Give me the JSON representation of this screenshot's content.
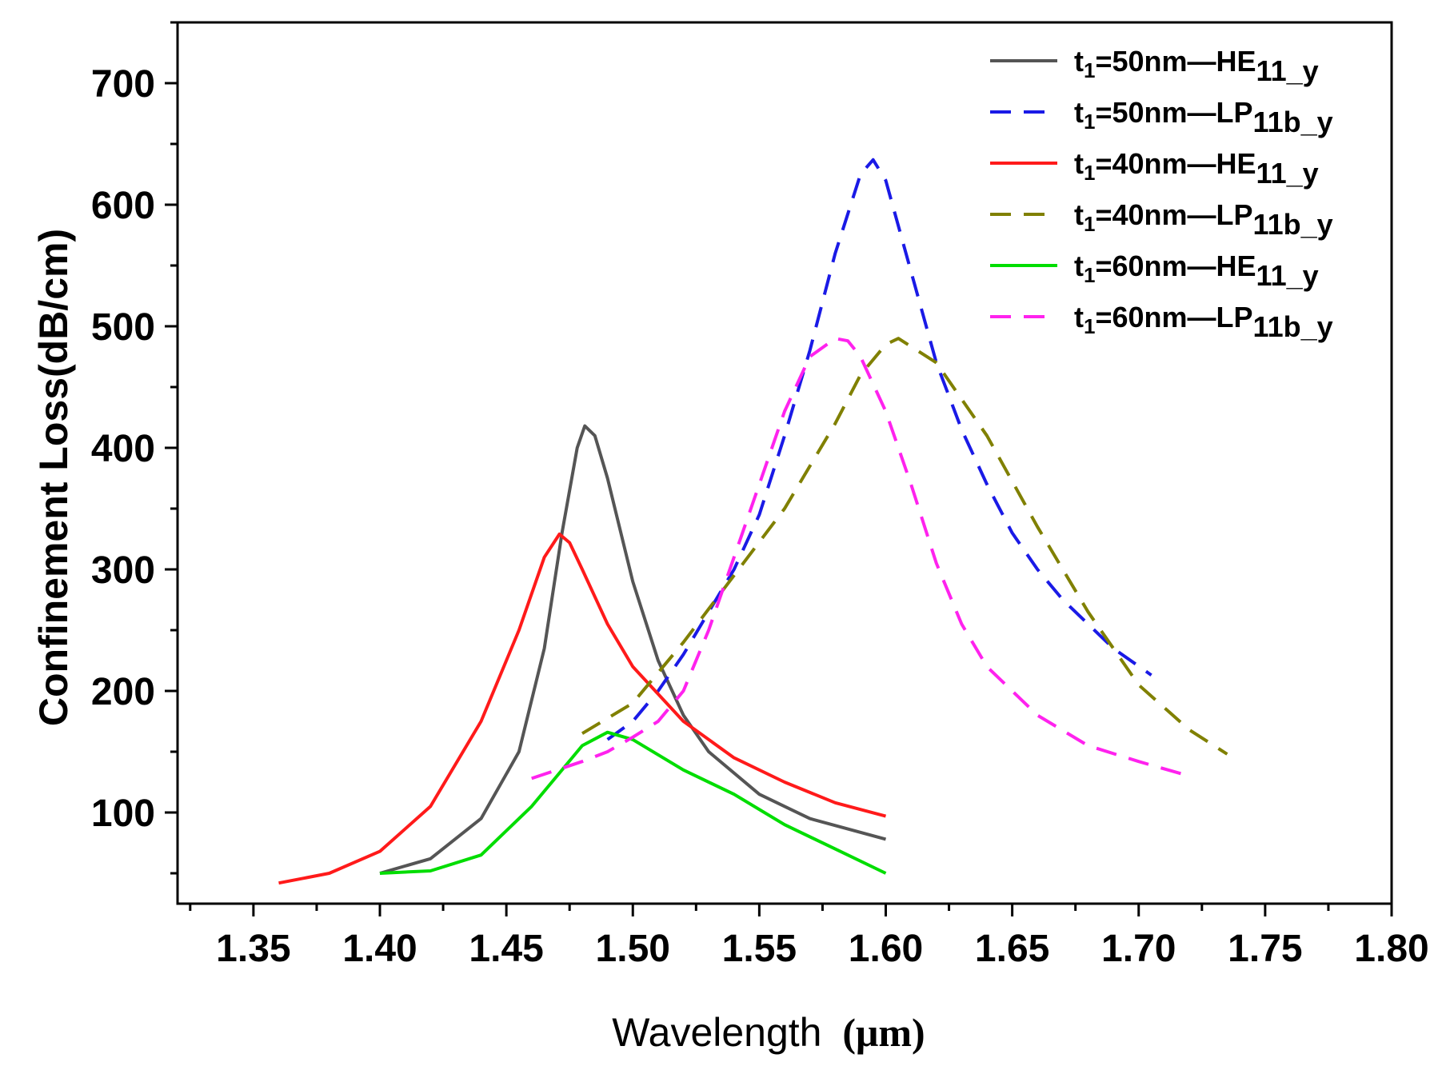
{
  "chart_data": {
    "type": "line",
    "title": "",
    "xlabel": "Wavelength (μm)",
    "xlabel_main": "Wavelength",
    "xlabel_unit": "(μm)",
    "ylabel": "Confinement Loss(dB/cm)",
    "xlim": [
      1.32,
      1.8
    ],
    "ylim": [
      25,
      750
    ],
    "x_ticks": [
      1.35,
      1.4,
      1.45,
      1.5,
      1.55,
      1.6,
      1.65,
      1.7,
      1.75,
      1.8
    ],
    "x_tick_labels": [
      "1.35",
      "1.40",
      "1.45",
      "1.50",
      "1.55",
      "1.60",
      "1.65",
      "1.70",
      "1.75",
      "1.80"
    ],
    "y_ticks": [
      100,
      200,
      300,
      400,
      500,
      600,
      700
    ],
    "y_tick_labels": [
      "100",
      "200",
      "300",
      "400",
      "500",
      "600",
      "700"
    ],
    "grid": false,
    "legend_position": "top-right",
    "series": [
      {
        "name": "t1=50nm—HE11_y",
        "legend": {
          "pre": "t",
          "sub": "1",
          "mid": "=50nm—HE",
          "sub2": "11_y"
        },
        "color": "#555555",
        "dash": "solid",
        "x": [
          1.4,
          1.42,
          1.44,
          1.455,
          1.465,
          1.472,
          1.478,
          1.481,
          1.485,
          1.49,
          1.5,
          1.51,
          1.52,
          1.53,
          1.55,
          1.57,
          1.6
        ],
        "y": [
          50,
          62,
          95,
          150,
          235,
          330,
          400,
          418,
          410,
          375,
          290,
          225,
          180,
          150,
          115,
          95,
          78
        ]
      },
      {
        "name": "t1=50nm—LP11b_y",
        "legend": {
          "pre": "t",
          "sub": "1",
          "mid": "=50nm—LP",
          "sub2": "11b_y"
        },
        "color": "#1a1ae6",
        "dash": "dashed",
        "x": [
          1.49,
          1.5,
          1.51,
          1.52,
          1.53,
          1.54,
          1.55,
          1.56,
          1.57,
          1.58,
          1.59,
          1.595,
          1.6,
          1.61,
          1.62,
          1.63,
          1.64,
          1.65,
          1.66,
          1.67,
          1.68,
          1.69,
          1.705
        ],
        "y": [
          160,
          175,
          200,
          230,
          265,
          300,
          345,
          410,
          480,
          560,
          625,
          637,
          620,
          545,
          470,
          415,
          370,
          330,
          300,
          275,
          255,
          235,
          213
        ]
      },
      {
        "name": "t1=40nm—HE11_y",
        "legend": {
          "pre": "t",
          "sub": "1",
          "mid": "=40nm—HE",
          "sub2": "11_y"
        },
        "color": "#ff1a1a",
        "dash": "solid",
        "x": [
          1.36,
          1.38,
          1.4,
          1.42,
          1.44,
          1.455,
          1.465,
          1.471,
          1.475,
          1.48,
          1.49,
          1.5,
          1.52,
          1.54,
          1.56,
          1.58,
          1.6
        ],
        "y": [
          42,
          50,
          68,
          105,
          175,
          250,
          310,
          329,
          322,
          300,
          255,
          220,
          175,
          145,
          125,
          108,
          97
        ]
      },
      {
        "name": "t1=40nm—LP11b_y",
        "legend": {
          "pre": "t",
          "sub": "1",
          "mid": "=40nm—LP",
          "sub2": "11b_y"
        },
        "color": "#808000",
        "dash": "dashed",
        "x": [
          1.48,
          1.5,
          1.52,
          1.54,
          1.56,
          1.58,
          1.59,
          1.6,
          1.605,
          1.62,
          1.64,
          1.66,
          1.68,
          1.7,
          1.72,
          1.735
        ],
        "y": [
          165,
          190,
          240,
          295,
          350,
          420,
          460,
          485,
          490,
          470,
          410,
          335,
          265,
          205,
          168,
          148
        ]
      },
      {
        "name": "t1=60nm—HE11_y",
        "legend": {
          "pre": "t",
          "sub": "1",
          "mid": "=60nm—HE",
          "sub2": "11_y"
        },
        "color": "#00dd00",
        "dash": "solid",
        "x": [
          1.4,
          1.42,
          1.44,
          1.46,
          1.47,
          1.48,
          1.49,
          1.5,
          1.52,
          1.54,
          1.56,
          1.58,
          1.6
        ],
        "y": [
          50,
          52,
          65,
          105,
          130,
          155,
          166,
          160,
          135,
          115,
          90,
          70,
          50
        ]
      },
      {
        "name": "t1=60nm—LP11b_y",
        "legend": {
          "pre": "t",
          "sub": "1",
          "mid": "=60nm—LP",
          "sub2": "11b_y"
        },
        "color": "#ff22ee",
        "dash": "dashed",
        "x": [
          1.46,
          1.47,
          1.48,
          1.49,
          1.5,
          1.51,
          1.52,
          1.53,
          1.54,
          1.55,
          1.56,
          1.57,
          1.58,
          1.585,
          1.59,
          1.6,
          1.61,
          1.62,
          1.63,
          1.64,
          1.66,
          1.68,
          1.7,
          1.72
        ],
        "y": [
          128,
          135,
          142,
          150,
          162,
          175,
          200,
          250,
          310,
          370,
          430,
          475,
          490,
          488,
          475,
          430,
          370,
          305,
          255,
          220,
          180,
          155,
          142,
          130
        ]
      }
    ]
  }
}
